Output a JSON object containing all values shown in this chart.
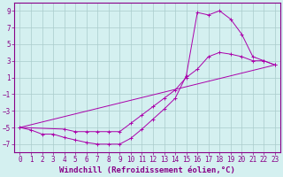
{
  "xlabel": "Windchill (Refroidissement éolien,°C)",
  "background_color": "#d4f0f0",
  "grid_color": "#aacccc",
  "line_color": "#aa00aa",
  "xlim": [
    -0.5,
    23.5
  ],
  "ylim": [
    -8,
    10
  ],
  "xticks": [
    0,
    1,
    2,
    3,
    4,
    5,
    6,
    7,
    8,
    9,
    10,
    11,
    12,
    13,
    14,
    15,
    16,
    17,
    18,
    19,
    20,
    21,
    22,
    23
  ],
  "yticks": [
    -7,
    -5,
    -3,
    -1,
    1,
    3,
    5,
    7,
    9
  ],
  "line1_x": [
    0,
    1,
    2,
    3,
    4,
    5,
    6,
    7,
    8,
    9,
    10,
    11,
    12,
    13,
    14,
    15,
    16,
    17,
    18,
    19,
    20,
    21,
    22,
    23
  ],
  "line1_y": [
    -5,
    -5.3,
    -5.8,
    -5.8,
    -6.2,
    -6.5,
    -6.8,
    -7.0,
    -7.0,
    -7.0,
    -6.3,
    -5.2,
    -4.0,
    -2.8,
    -1.5,
    1.2,
    8.8,
    8.5,
    9.0,
    8.0,
    6.2,
    3.5,
    3.0,
    2.5
  ],
  "line2_x": [
    0,
    4,
    5,
    6,
    7,
    8,
    9,
    10,
    11,
    12,
    13,
    14,
    15,
    16,
    17,
    18,
    19,
    20,
    21,
    22,
    23
  ],
  "line2_y": [
    -5,
    -5.2,
    -5.5,
    -5.5,
    -5.5,
    -5.5,
    -5.5,
    -4.5,
    -3.5,
    -2.5,
    -1.5,
    -0.5,
    1.0,
    2.0,
    3.5,
    4.0,
    3.8,
    3.5,
    3.0,
    3.0,
    2.5
  ],
  "line3_x": [
    0,
    23
  ],
  "line3_y": [
    -5,
    2.5
  ],
  "font_size_tick": 5.5,
  "font_size_label": 6.5
}
